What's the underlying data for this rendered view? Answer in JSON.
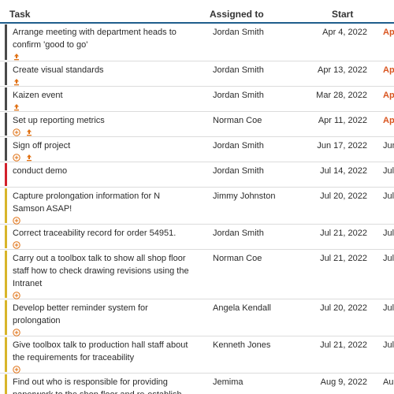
{
  "header": {
    "task": "Task",
    "assigned": "Assigned to",
    "start": "Start"
  },
  "colors": {
    "header_line": "#1f5e8c",
    "status_dark": "#4a4a4a",
    "status_red": "#d21f2b",
    "status_yellow": "#d8b52a",
    "icon_orange": "#e07012",
    "due_orange": "#d9541e"
  },
  "rows": [
    {
      "task": "Arrange meeting with department heads to confirm 'good to go'",
      "assigned": "Jordan Smith",
      "start": "Apr 4, 2022",
      "due": "Ap",
      "bar": "#4a4a4a",
      "icons": [
        "upload-icon"
      ]
    },
    {
      "task": "Create visual standards",
      "assigned": "Jordan Smith",
      "start": "Apr 13, 2022",
      "due": "Apr",
      "bar": "#4a4a4a",
      "icons": [
        "upload-icon"
      ]
    },
    {
      "task": "Kaizen event",
      "assigned": "Jordan Smith",
      "start": "Mar 28, 2022",
      "due": "Apr",
      "bar": "#4a4a4a",
      "icons": [
        "upload-icon"
      ]
    },
    {
      "task": "Set up reporting metrics",
      "assigned": "Norman Coe",
      "start": "Apr 11, 2022",
      "due": "Apr",
      "bar": "#4a4a4a",
      "icons": [
        "add-circle-icon",
        "upload-icon"
      ]
    },
    {
      "task": "Sign off project",
      "assigned": "Jordan Smith",
      "start": "Jun 17, 2022",
      "due": "Jun",
      "bar": "#4a4a4a",
      "icons": [
        "add-circle-icon",
        "upload-icon"
      ]
    },
    {
      "task": "conduct demo",
      "assigned": "Jordan Smith",
      "start": "Jul 14, 2022",
      "due": "Jul",
      "bar": "#d21f2b",
      "icons": []
    },
    {
      "task": "Capture prolongation information for N Samson ASAP!",
      "assigned": "Jimmy Johnston",
      "start": "Jul 20, 2022",
      "due": "Jul",
      "bar": "#d8b52a",
      "icons": [
        "add-circle-icon"
      ]
    },
    {
      "task": "Correct traceability record for order 54951.",
      "assigned": "Jordan Smith",
      "start": "Jul 21, 2022",
      "due": "Jul",
      "bar": "#d8b52a",
      "icons": [
        "add-circle-icon"
      ]
    },
    {
      "task": "Carry out a toolbox talk to show all shop floor staff how to check drawing revisions using the Intranet",
      "assigned": "Norman Coe",
      "start": "Jul 21, 2022",
      "due": "Jul",
      "bar": "#d8b52a",
      "icons": [
        "add-circle-icon"
      ]
    },
    {
      "task": "Develop better reminder system for prolongation",
      "assigned": "Angela Kendall",
      "start": "Jul 20, 2022",
      "due": "Jul",
      "bar": "#d8b52a",
      "icons": [
        "add-circle-icon"
      ]
    },
    {
      "task": "Give toolbox talk to production hall staff about the requirements for traceability",
      "assigned": "Kenneth Jones",
      "start": "Jul 21, 2022",
      "due": "Jul",
      "bar": "#d8b52a",
      "icons": [
        "add-circle-icon"
      ]
    },
    {
      "task": "Find out who is responsible for providing paperwork to the shop floor and re-establish",
      "assigned": "Jemima",
      "start": "Aug 9, 2022",
      "due": "Aug",
      "bar": "#d8b52a",
      "icons": []
    }
  ]
}
